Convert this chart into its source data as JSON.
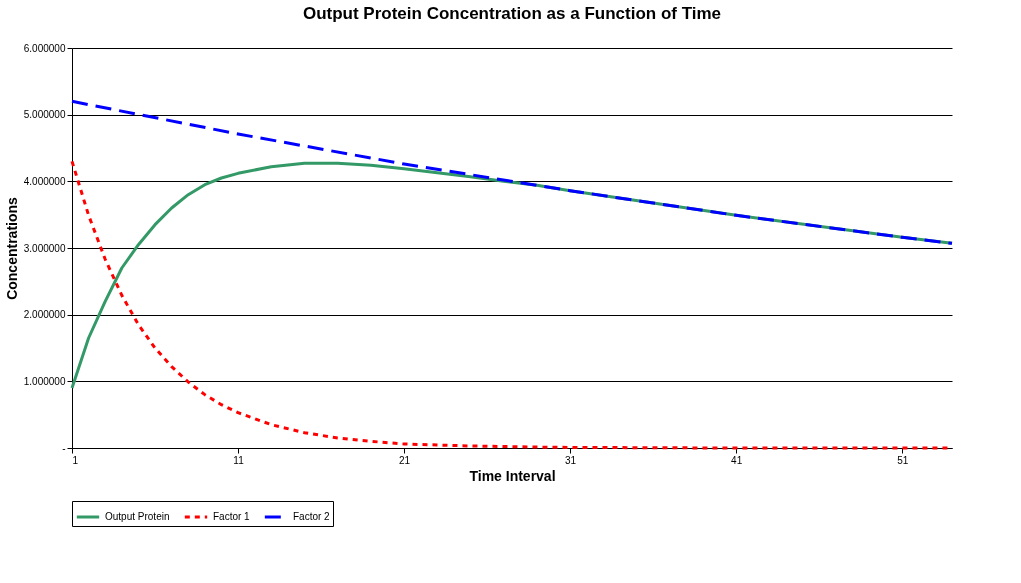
{
  "chart_data": {
    "type": "line",
    "title": "Output Protein Concentration as a Function of Time",
    "xlabel": "Time Interval",
    "ylabel": "Concentrations",
    "xlim": [
      1,
      54
    ],
    "xticks": [
      1,
      11,
      21,
      31,
      41,
      51
    ],
    "ylim": [
      0,
      6
    ],
    "yticks": [
      {
        "value": 0,
        "label": "-"
      },
      {
        "value": 1,
        "label": "1.000000"
      },
      {
        "value": 2,
        "label": "2.000000"
      },
      {
        "value": 3,
        "label": "3.000000"
      },
      {
        "value": 4,
        "label": "4.000000"
      },
      {
        "value": 5,
        "label": "5.000000"
      },
      {
        "value": 6,
        "label": "6.000000"
      }
    ],
    "grid": "y",
    "legend": "bottom",
    "marker": "none",
    "series": [
      {
        "name": "Output Protein",
        "color": "#339966",
        "line_style": "solid",
        "x": [
          1,
          2,
          3,
          4,
          5,
          6,
          7,
          8,
          9,
          10,
          11,
          13,
          15,
          17,
          19,
          21,
          23,
          25,
          27,
          29,
          31,
          41,
          51,
          54
        ],
        "values": [
          0.9,
          1.65,
          2.2,
          2.7,
          3.05,
          3.35,
          3.6,
          3.8,
          3.95,
          4.05,
          4.12,
          4.22,
          4.27,
          4.27,
          4.24,
          4.19,
          4.13,
          4.07,
          4.0,
          3.94,
          3.86,
          3.49,
          3.16,
          3.07
        ]
      },
      {
        "name": "Factor 1",
        "color": "#ff0000",
        "line_style": "dotted",
        "x": [
          1,
          2,
          3,
          4,
          5,
          6,
          7,
          8,
          9,
          10,
          11,
          13,
          15,
          17,
          19,
          21,
          25,
          30,
          40,
          54
        ],
        "values": [
          4.3,
          3.49,
          2.83,
          2.29,
          1.85,
          1.5,
          1.22,
          0.99,
          0.8,
          0.65,
          0.53,
          0.35,
          0.23,
          0.15,
          0.1,
          0.06,
          0.03,
          0.01,
          0.0,
          0.0
        ]
      },
      {
        "name": "Factor 2",
        "color": "#0000ff",
        "line_style": "dashed",
        "x": [
          1,
          11,
          21,
          31,
          41,
          51,
          54
        ],
        "values": [
          5.2,
          4.71,
          4.26,
          3.86,
          3.49,
          3.16,
          3.07
        ]
      }
    ]
  }
}
